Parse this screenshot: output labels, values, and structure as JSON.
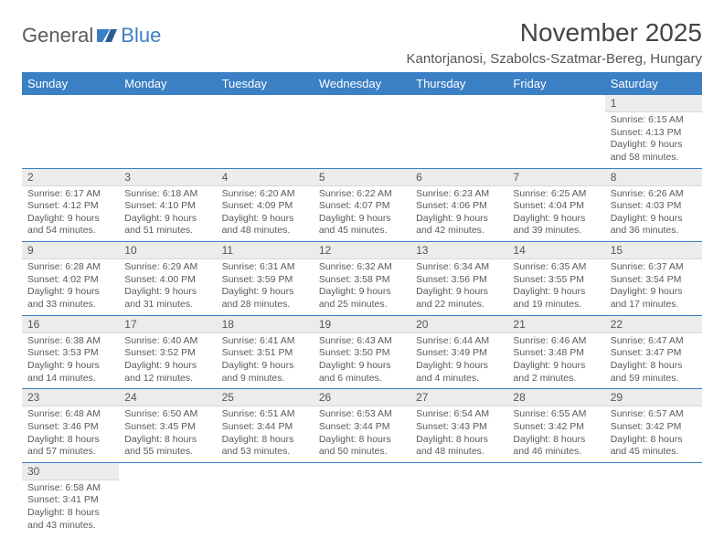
{
  "logo": {
    "general": "General",
    "blue": "Blue"
  },
  "title": "November 2025",
  "location": "Kantorjanosi, Szabolcs-Szatmar-Bereg, Hungary",
  "colors": {
    "header_bg": "#3b7fc4",
    "header_text": "#ffffff",
    "daynum_bg": "#ececec",
    "text": "#5a5a5a",
    "rule": "#3b7fc4"
  },
  "weekdays": [
    "Sunday",
    "Monday",
    "Tuesday",
    "Wednesday",
    "Thursday",
    "Friday",
    "Saturday"
  ],
  "weeks": [
    [
      null,
      null,
      null,
      null,
      null,
      null,
      {
        "n": "1",
        "sunrise": "Sunrise: 6:15 AM",
        "sunset": "Sunset: 4:13 PM",
        "day1": "Daylight: 9 hours",
        "day2": "and 58 minutes."
      }
    ],
    [
      {
        "n": "2",
        "sunrise": "Sunrise: 6:17 AM",
        "sunset": "Sunset: 4:12 PM",
        "day1": "Daylight: 9 hours",
        "day2": "and 54 minutes."
      },
      {
        "n": "3",
        "sunrise": "Sunrise: 6:18 AM",
        "sunset": "Sunset: 4:10 PM",
        "day1": "Daylight: 9 hours",
        "day2": "and 51 minutes."
      },
      {
        "n": "4",
        "sunrise": "Sunrise: 6:20 AM",
        "sunset": "Sunset: 4:09 PM",
        "day1": "Daylight: 9 hours",
        "day2": "and 48 minutes."
      },
      {
        "n": "5",
        "sunrise": "Sunrise: 6:22 AM",
        "sunset": "Sunset: 4:07 PM",
        "day1": "Daylight: 9 hours",
        "day2": "and 45 minutes."
      },
      {
        "n": "6",
        "sunrise": "Sunrise: 6:23 AM",
        "sunset": "Sunset: 4:06 PM",
        "day1": "Daylight: 9 hours",
        "day2": "and 42 minutes."
      },
      {
        "n": "7",
        "sunrise": "Sunrise: 6:25 AM",
        "sunset": "Sunset: 4:04 PM",
        "day1": "Daylight: 9 hours",
        "day2": "and 39 minutes."
      },
      {
        "n": "8",
        "sunrise": "Sunrise: 6:26 AM",
        "sunset": "Sunset: 4:03 PM",
        "day1": "Daylight: 9 hours",
        "day2": "and 36 minutes."
      }
    ],
    [
      {
        "n": "9",
        "sunrise": "Sunrise: 6:28 AM",
        "sunset": "Sunset: 4:02 PM",
        "day1": "Daylight: 9 hours",
        "day2": "and 33 minutes."
      },
      {
        "n": "10",
        "sunrise": "Sunrise: 6:29 AM",
        "sunset": "Sunset: 4:00 PM",
        "day1": "Daylight: 9 hours",
        "day2": "and 31 minutes."
      },
      {
        "n": "11",
        "sunrise": "Sunrise: 6:31 AM",
        "sunset": "Sunset: 3:59 PM",
        "day1": "Daylight: 9 hours",
        "day2": "and 28 minutes."
      },
      {
        "n": "12",
        "sunrise": "Sunrise: 6:32 AM",
        "sunset": "Sunset: 3:58 PM",
        "day1": "Daylight: 9 hours",
        "day2": "and 25 minutes."
      },
      {
        "n": "13",
        "sunrise": "Sunrise: 6:34 AM",
        "sunset": "Sunset: 3:56 PM",
        "day1": "Daylight: 9 hours",
        "day2": "and 22 minutes."
      },
      {
        "n": "14",
        "sunrise": "Sunrise: 6:35 AM",
        "sunset": "Sunset: 3:55 PM",
        "day1": "Daylight: 9 hours",
        "day2": "and 19 minutes."
      },
      {
        "n": "15",
        "sunrise": "Sunrise: 6:37 AM",
        "sunset": "Sunset: 3:54 PM",
        "day1": "Daylight: 9 hours",
        "day2": "and 17 minutes."
      }
    ],
    [
      {
        "n": "16",
        "sunrise": "Sunrise: 6:38 AM",
        "sunset": "Sunset: 3:53 PM",
        "day1": "Daylight: 9 hours",
        "day2": "and 14 minutes."
      },
      {
        "n": "17",
        "sunrise": "Sunrise: 6:40 AM",
        "sunset": "Sunset: 3:52 PM",
        "day1": "Daylight: 9 hours",
        "day2": "and 12 minutes."
      },
      {
        "n": "18",
        "sunrise": "Sunrise: 6:41 AM",
        "sunset": "Sunset: 3:51 PM",
        "day1": "Daylight: 9 hours",
        "day2": "and 9 minutes."
      },
      {
        "n": "19",
        "sunrise": "Sunrise: 6:43 AM",
        "sunset": "Sunset: 3:50 PM",
        "day1": "Daylight: 9 hours",
        "day2": "and 6 minutes."
      },
      {
        "n": "20",
        "sunrise": "Sunrise: 6:44 AM",
        "sunset": "Sunset: 3:49 PM",
        "day1": "Daylight: 9 hours",
        "day2": "and 4 minutes."
      },
      {
        "n": "21",
        "sunrise": "Sunrise: 6:46 AM",
        "sunset": "Sunset: 3:48 PM",
        "day1": "Daylight: 9 hours",
        "day2": "and 2 minutes."
      },
      {
        "n": "22",
        "sunrise": "Sunrise: 6:47 AM",
        "sunset": "Sunset: 3:47 PM",
        "day1": "Daylight: 8 hours",
        "day2": "and 59 minutes."
      }
    ],
    [
      {
        "n": "23",
        "sunrise": "Sunrise: 6:48 AM",
        "sunset": "Sunset: 3:46 PM",
        "day1": "Daylight: 8 hours",
        "day2": "and 57 minutes."
      },
      {
        "n": "24",
        "sunrise": "Sunrise: 6:50 AM",
        "sunset": "Sunset: 3:45 PM",
        "day1": "Daylight: 8 hours",
        "day2": "and 55 minutes."
      },
      {
        "n": "25",
        "sunrise": "Sunrise: 6:51 AM",
        "sunset": "Sunset: 3:44 PM",
        "day1": "Daylight: 8 hours",
        "day2": "and 53 minutes."
      },
      {
        "n": "26",
        "sunrise": "Sunrise: 6:53 AM",
        "sunset": "Sunset: 3:44 PM",
        "day1": "Daylight: 8 hours",
        "day2": "and 50 minutes."
      },
      {
        "n": "27",
        "sunrise": "Sunrise: 6:54 AM",
        "sunset": "Sunset: 3:43 PM",
        "day1": "Daylight: 8 hours",
        "day2": "and 48 minutes."
      },
      {
        "n": "28",
        "sunrise": "Sunrise: 6:55 AM",
        "sunset": "Sunset: 3:42 PM",
        "day1": "Daylight: 8 hours",
        "day2": "and 46 minutes."
      },
      {
        "n": "29",
        "sunrise": "Sunrise: 6:57 AM",
        "sunset": "Sunset: 3:42 PM",
        "day1": "Daylight: 8 hours",
        "day2": "and 45 minutes."
      }
    ],
    [
      {
        "n": "30",
        "sunrise": "Sunrise: 6:58 AM",
        "sunset": "Sunset: 3:41 PM",
        "day1": "Daylight: 8 hours",
        "day2": "and 43 minutes."
      },
      null,
      null,
      null,
      null,
      null,
      null
    ]
  ]
}
